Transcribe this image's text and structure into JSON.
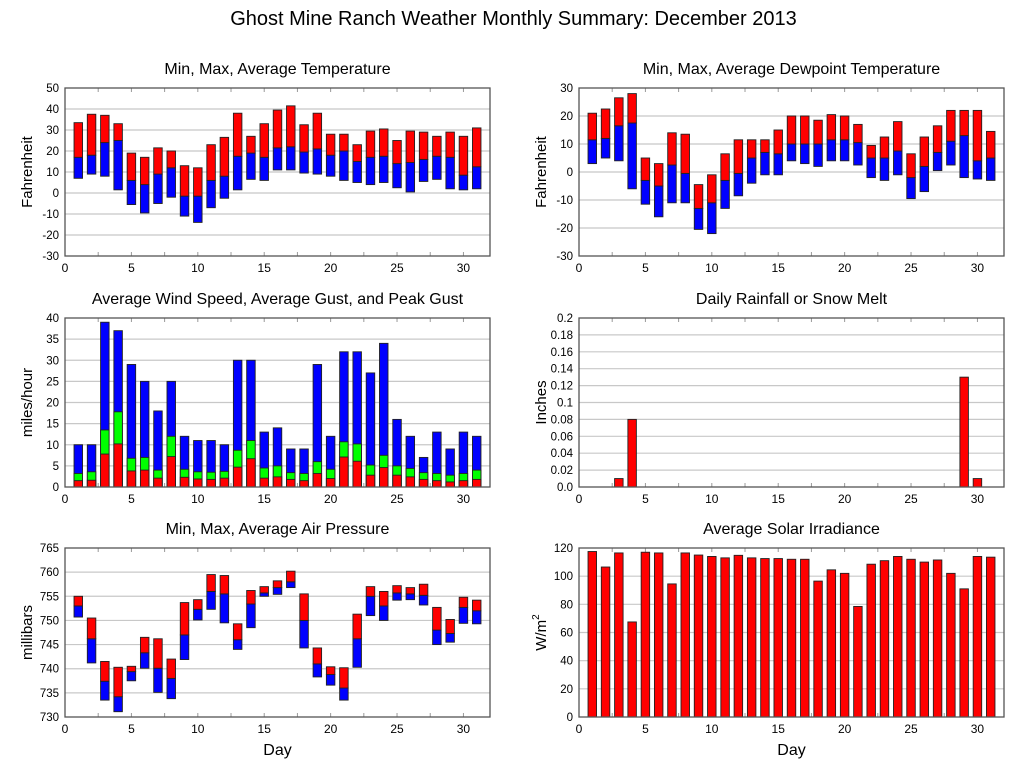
{
  "page": {
    "title": "Ghost Mine Ranch Weather Monthly Summary: December 2013"
  },
  "colors": {
    "red": "#ff0000",
    "blue": "#0000ff",
    "green": "#00ff00",
    "grid": "#c8c8c8",
    "axis": "#555555"
  },
  "chart_data": [
    {
      "id": "temperature",
      "type": "bar",
      "subtype": "floating-range",
      "title": "Min, Max, Average Temperature",
      "xlabel": "",
      "ylabel": "Fahrenheit",
      "xlim": [
        0,
        32
      ],
      "ylim": [
        -30,
        50
      ],
      "xticks": [
        0,
        5,
        10,
        15,
        20,
        25,
        30
      ],
      "yticks": [
        -30,
        -20,
        -10,
        0,
        10,
        20,
        30,
        40,
        50
      ],
      "ytick_labels": [
        "-30",
        "-20",
        "-10",
        "0",
        "10",
        "20",
        "30",
        "40",
        "50"
      ],
      "grid": true,
      "x": [
        1,
        2,
        3,
        4,
        5,
        6,
        7,
        8,
        9,
        10,
        11,
        12,
        13,
        14,
        15,
        16,
        17,
        18,
        19,
        20,
        21,
        22,
        23,
        24,
        25,
        26,
        27,
        28,
        29,
        30,
        31
      ],
      "series": [
        {
          "name": "Max",
          "color": "red",
          "values": [
            33.5,
            37.5,
            37,
            33,
            19,
            17,
            21.5,
            20,
            13,
            12,
            23,
            26.5,
            38,
            27,
            33,
            39.5,
            41.5,
            32.5,
            38,
            28,
            28,
            23,
            29.5,
            30.5,
            25,
            29.5,
            29,
            27,
            29,
            27,
            31
          ]
        },
        {
          "name": "Average",
          "color": "blue",
          "values": [
            17,
            18,
            24,
            25,
            6,
            4,
            9,
            12,
            -1.5,
            -1.5,
            6,
            8,
            17.5,
            19,
            17,
            21.5,
            22,
            19.5,
            21,
            18,
            20,
            15,
            17,
            17.5,
            14,
            14.5,
            16,
            17.5,
            17,
            8.5,
            12.5
          ]
        },
        {
          "name": "Min",
          "color": "blue",
          "values": [
            7,
            9,
            8,
            1.5,
            -5.5,
            -9.5,
            -5,
            -2,
            -11,
            -14,
            -7,
            -2.5,
            1.5,
            6.5,
            6,
            11,
            11,
            9.5,
            9,
            8,
            6,
            5,
            4,
            5,
            2.5,
            0.5,
            5.5,
            6.5,
            2,
            1.5,
            2
          ]
        }
      ]
    },
    {
      "id": "dewpoint",
      "type": "bar",
      "subtype": "floating-range",
      "title": "Min, Max, Average Dewpoint Temperature",
      "xlabel": "",
      "ylabel": "Fahrenheit",
      "xlim": [
        0,
        32
      ],
      "ylim": [
        -30,
        30
      ],
      "xticks": [
        0,
        5,
        10,
        15,
        20,
        25,
        30
      ],
      "yticks": [
        -30,
        -20,
        -10,
        0,
        10,
        20,
        30
      ],
      "ytick_labels": [
        "-30",
        "-20",
        "-10",
        "0",
        "10",
        "20",
        "30"
      ],
      "grid": true,
      "x": [
        1,
        2,
        3,
        4,
        5,
        6,
        7,
        8,
        9,
        10,
        11,
        12,
        13,
        14,
        15,
        16,
        17,
        18,
        19,
        20,
        21,
        22,
        23,
        24,
        25,
        26,
        27,
        28,
        29,
        30,
        31
      ],
      "series": [
        {
          "name": "Max",
          "color": "red",
          "values": [
            21,
            22.5,
            26.5,
            28,
            5,
            3,
            14,
            13.5,
            -4.5,
            -1,
            6.5,
            11.5,
            11.5,
            11.5,
            15,
            20,
            20,
            18.5,
            20.5,
            20,
            17,
            9.5,
            12.5,
            18,
            6.5,
            12.5,
            16.5,
            22,
            22,
            22,
            14.5
          ]
        },
        {
          "name": "Average",
          "color": "blue",
          "values": [
            11.5,
            12,
            16.5,
            17.5,
            -3,
            -5,
            2.5,
            -0.5,
            -13,
            -11,
            -3,
            -0.5,
            5,
            7,
            6.5,
            10,
            10,
            10,
            11.5,
            11.5,
            10.5,
            5,
            5,
            7.5,
            -2,
            2,
            7,
            11,
            13,
            4,
            5
          ]
        },
        {
          "name": "Min",
          "color": "blue",
          "values": [
            3,
            5,
            4,
            -6,
            -11.5,
            -16,
            -11,
            -11,
            -20.5,
            -22,
            -13,
            -8.5,
            -4,
            -1,
            -1,
            4,
            3,
            2,
            4,
            4,
            2.5,
            -2,
            -3,
            -1,
            -9.5,
            -7,
            0.5,
            2.5,
            -2,
            -2.5,
            -3
          ]
        }
      ]
    },
    {
      "id": "wind",
      "type": "bar",
      "subtype": "overlapping",
      "title": "Average Wind Speed, Average Gust, and Peak Gust",
      "xlabel": "",
      "ylabel": "miles/hour",
      "xlim": [
        0,
        32
      ],
      "ylim": [
        0,
        40
      ],
      "xticks": [
        0,
        5,
        10,
        15,
        20,
        25,
        30
      ],
      "yticks": [
        0,
        5,
        10,
        15,
        20,
        25,
        30,
        35,
        40
      ],
      "ytick_labels": [
        "0",
        "5",
        "10",
        "15",
        "20",
        "25",
        "30",
        "35",
        "40"
      ],
      "grid": true,
      "x": [
        1,
        2,
        3,
        4,
        5,
        6,
        7,
        8,
        9,
        10,
        11,
        12,
        13,
        14,
        15,
        16,
        17,
        18,
        19,
        20,
        21,
        22,
        23,
        24,
        25,
        26,
        27,
        28,
        29,
        30,
        31
      ],
      "series": [
        {
          "name": "Peak Gust",
          "color": "blue",
          "values": [
            10,
            10,
            39,
            37,
            29,
            25,
            18,
            25,
            12,
            11,
            11,
            10,
            30,
            30,
            13,
            14,
            9,
            9,
            29,
            12,
            32,
            32,
            27,
            34,
            16,
            12,
            7,
            13,
            9,
            13,
            12
          ]
        },
        {
          "name": "Average Gust",
          "color": "green",
          "values": [
            3.2,
            3.6,
            13.5,
            17.8,
            6.8,
            7,
            4,
            12,
            4.2,
            3.6,
            3.5,
            3.7,
            8.7,
            11,
            4.5,
            5,
            3.4,
            3.2,
            6,
            4.2,
            10.7,
            10.2,
            5.2,
            7.5,
            5,
            4.4,
            3.4,
            3.2,
            2.8,
            3.2,
            4
          ]
        },
        {
          "name": "Average Wind Speed",
          "color": "red",
          "values": [
            1.5,
            1.6,
            7.8,
            10.2,
            3.8,
            4,
            2.1,
            7.2,
            2.3,
            1.9,
            1.8,
            2.1,
            4.7,
            6.7,
            2.1,
            2.4,
            1.8,
            1.5,
            3.2,
            2,
            7.1,
            6.1,
            2.8,
            4.6,
            2.8,
            2.4,
            1.8,
            1.5,
            1.2,
            1.5,
            1.8
          ]
        }
      ]
    },
    {
      "id": "rainfall",
      "type": "bar",
      "title": "Daily Rainfall or Snow Melt",
      "xlabel": "",
      "ylabel": "Inches",
      "xlim": [
        0,
        32
      ],
      "ylim": [
        0,
        0.2
      ],
      "xticks": [
        0,
        5,
        10,
        15,
        20,
        25,
        30
      ],
      "yticks": [
        0,
        0.02,
        0.04,
        0.06,
        0.08,
        0.1,
        0.12,
        0.14,
        0.16,
        0.18,
        0.2
      ],
      "ytick_labels": [
        "0.0",
        "0.02",
        "0.04",
        "0.06",
        "0.08",
        "0.1",
        "0.12",
        "0.14",
        "0.16",
        "0.18",
        "0.2"
      ],
      "grid": true,
      "x": [
        1,
        2,
        3,
        4,
        5,
        6,
        7,
        8,
        9,
        10,
        11,
        12,
        13,
        14,
        15,
        16,
        17,
        18,
        19,
        20,
        21,
        22,
        23,
        24,
        25,
        26,
        27,
        28,
        29,
        30,
        31
      ],
      "series": [
        {
          "name": "Rainfall",
          "color": "red",
          "values": [
            0,
            0,
            0.01,
            0.08,
            0,
            0,
            0,
            0,
            0,
            0,
            0,
            0,
            0,
            0,
            0,
            0,
            0,
            0,
            0,
            0,
            0,
            0,
            0,
            0,
            0,
            0,
            0,
            0,
            0.13,
            0.01,
            0
          ]
        }
      ]
    },
    {
      "id": "pressure",
      "type": "bar",
      "subtype": "floating-range",
      "title": "Min, Max, Average Air Pressure",
      "xlabel": "Day",
      "ylabel": "millibars",
      "xlim": [
        0,
        32
      ],
      "ylim": [
        730,
        765
      ],
      "xticks": [
        0,
        5,
        10,
        15,
        20,
        25,
        30
      ],
      "yticks": [
        730,
        735,
        740,
        745,
        750,
        755,
        760,
        765
      ],
      "ytick_labels": [
        "730",
        "735",
        "740",
        "745",
        "750",
        "755",
        "760",
        "765"
      ],
      "grid": true,
      "x": [
        1,
        2,
        3,
        4,
        5,
        6,
        7,
        8,
        9,
        10,
        11,
        12,
        13,
        14,
        15,
        16,
        17,
        18,
        19,
        20,
        21,
        22,
        23,
        24,
        25,
        26,
        27,
        28,
        29,
        30,
        31
      ],
      "series": [
        {
          "name": "Max",
          "color": "red",
          "values": [
            755,
            750.5,
            741.5,
            740.3,
            740.5,
            746.5,
            746.2,
            742,
            753.7,
            754.3,
            759.5,
            759.3,
            749.3,
            756.2,
            757,
            758.2,
            760.2,
            755.5,
            744.3,
            740.4,
            740.2,
            751.3,
            757,
            756,
            757.2,
            756.8,
            757.5,
            752.7,
            750.2,
            754.8,
            754.2
          ]
        },
        {
          "name": "Average",
          "color": "blue",
          "values": [
            753,
            746.2,
            737.4,
            734.2,
            739.4,
            743.3,
            740.1,
            738,
            747,
            752.3,
            756,
            755.5,
            746,
            753.4,
            755.7,
            756.8,
            758,
            750,
            741,
            738.8,
            736,
            746.2,
            755,
            753,
            755.7,
            755.5,
            755.2,
            748,
            747.3,
            752.7,
            752
          ]
        },
        {
          "name": "Min",
          "color": "blue",
          "values": [
            750.7,
            741.2,
            733.5,
            731.1,
            737.5,
            740.1,
            735.1,
            733.8,
            741.9,
            750.1,
            752.3,
            749.5,
            744,
            748.5,
            755,
            755.4,
            756.8,
            744.3,
            738.3,
            736.6,
            733.5,
            740.3,
            751,
            750,
            754.2,
            754.3,
            753.2,
            745,
            745.5,
            749.4,
            749.3
          ]
        }
      ]
    },
    {
      "id": "solar",
      "type": "bar",
      "title": "Average Solar Irradiance",
      "xlabel": "Day",
      "ylabel": "W/m2",
      "ylabel_main": "W/m",
      "ylabel_sup": "2",
      "xlim": [
        0,
        32
      ],
      "ylim": [
        0,
        120
      ],
      "xticks": [
        0,
        5,
        10,
        15,
        20,
        25,
        30
      ],
      "yticks": [
        0,
        20,
        40,
        60,
        80,
        100,
        120
      ],
      "ytick_labels": [
        "0",
        "20",
        "40",
        "60",
        "80",
        "100",
        "120"
      ],
      "grid": true,
      "x": [
        1,
        2,
        3,
        4,
        5,
        6,
        7,
        8,
        9,
        10,
        11,
        12,
        13,
        14,
        15,
        16,
        17,
        18,
        19,
        20,
        21,
        22,
        23,
        24,
        25,
        26,
        27,
        28,
        29,
        30,
        31
      ],
      "series": [
        {
          "name": "Solar Irradiance",
          "color": "red",
          "values": [
            117.5,
            106.5,
            116.5,
            67.5,
            117,
            116.5,
            94.5,
            116.5,
            115,
            114,
            113,
            114.8,
            113,
            112.5,
            112.5,
            112,
            112,
            96.5,
            104.5,
            102,
            78.5,
            108.5,
            111,
            114,
            112,
            110,
            111.5,
            102,
            91,
            114,
            113.5
          ]
        }
      ]
    }
  ]
}
